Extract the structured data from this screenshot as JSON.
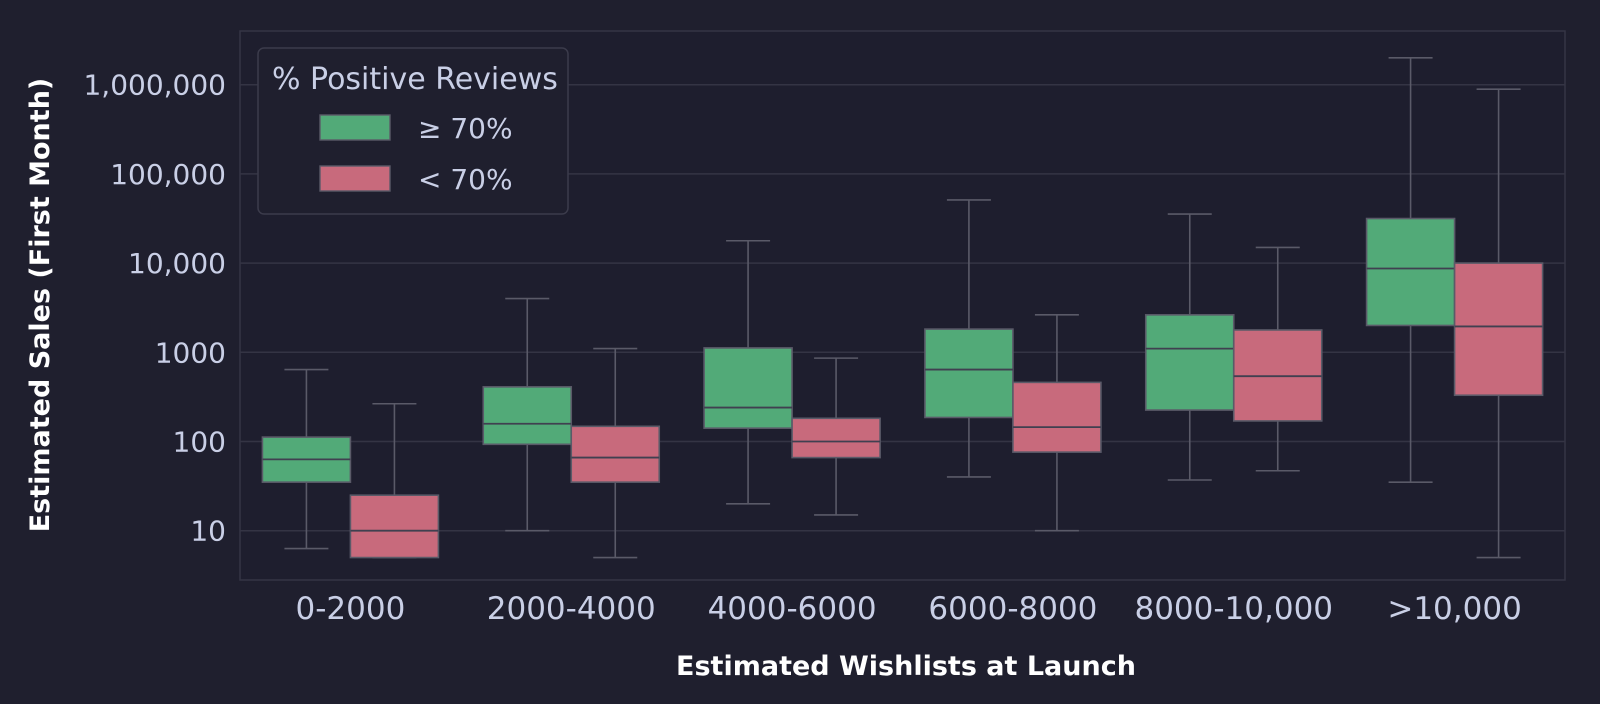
{
  "chart_data": {
    "type": "box",
    "xlabel": "Estimated Wishlists at Launch",
    "ylabel": "Estimated Sales (First Month)",
    "y_scale": "log",
    "ylim": [
      2.8,
      4000000
    ],
    "y_ticks": [
      10,
      100,
      1000,
      10000,
      100000,
      1000000
    ],
    "y_tick_labels": [
      "10",
      "100",
      "1000",
      "10,000",
      "100,000",
      "1,000,000"
    ],
    "grid": true,
    "categories": [
      "0-2000",
      "2000-4000",
      "4000-6000",
      "6000-8000",
      "8000-10,000",
      ">10,000"
    ],
    "legend": {
      "title": "% Positive Reviews",
      "position": "top-left"
    },
    "series": [
      {
        "name": "≥ 70%",
        "color": "#52aa78",
        "boxes": [
          {
            "whisker_low": 6.3,
            "q1": 35,
            "median": 63,
            "q3": 112,
            "whisker_high": 640
          },
          {
            "whisker_low": 10,
            "q1": 93,
            "median": 158,
            "q3": 410,
            "whisker_high": 4000
          },
          {
            "whisker_low": 20,
            "q1": 141,
            "median": 240,
            "q3": 1120,
            "whisker_high": 17800
          },
          {
            "whisker_low": 40,
            "q1": 186,
            "median": 640,
            "q3": 1820,
            "whisker_high": 51000
          },
          {
            "whisker_low": 37,
            "q1": 225,
            "median": 1100,
            "q3": 2630,
            "whisker_high": 35500
          },
          {
            "whisker_low": 35,
            "q1": 2000,
            "median": 8700,
            "q3": 31600,
            "whisker_high": 2000000
          }
        ]
      },
      {
        "name": "< 70%",
        "color": "#c86a7c",
        "boxes": [
          {
            "whisker_low": 5,
            "q1": 5,
            "median": 10,
            "q3": 25,
            "whisker_high": 265
          },
          {
            "whisker_low": 5,
            "q1": 35,
            "median": 66,
            "q3": 148,
            "whisker_high": 1100
          },
          {
            "whisker_low": 15,
            "q1": 66,
            "median": 100,
            "q3": 182,
            "whisker_high": 860
          },
          {
            "whisker_low": 10,
            "q1": 76,
            "median": 145,
            "q3": 460,
            "whisker_high": 2630
          },
          {
            "whisker_low": 47,
            "q1": 170,
            "median": 540,
            "q3": 1780,
            "whisker_high": 15000
          },
          {
            "whisker_low": 5,
            "q1": 330,
            "median": 1950,
            "q3": 10000,
            "whisker_high": 890000
          }
        ]
      }
    ]
  }
}
